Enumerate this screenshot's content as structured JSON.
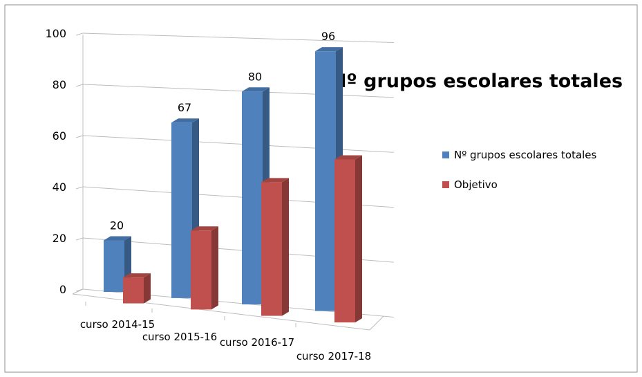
{
  "chart_data": {
    "type": "bar3d",
    "title": "Nº grupos escolares totales",
    "categories": [
      "curso 2014-15",
      "curso 2015-16",
      "curso 2016-17",
      "curso 2017-18"
    ],
    "series": [
      {
        "name": "Nº grupos escolares totales",
        "color": "#4f81bd",
        "values": [
          20,
          67,
          80,
          96
        ],
        "data_labels": true
      },
      {
        "name": "Objetivo",
        "color": "#c0504d",
        "values": [
          10,
          30,
          50,
          60
        ],
        "data_labels": false
      }
    ],
    "ylim": [
      0,
      100
    ],
    "yticks": [
      0,
      20,
      40,
      60,
      80,
      100
    ],
    "grid": true,
    "legend": "right"
  }
}
